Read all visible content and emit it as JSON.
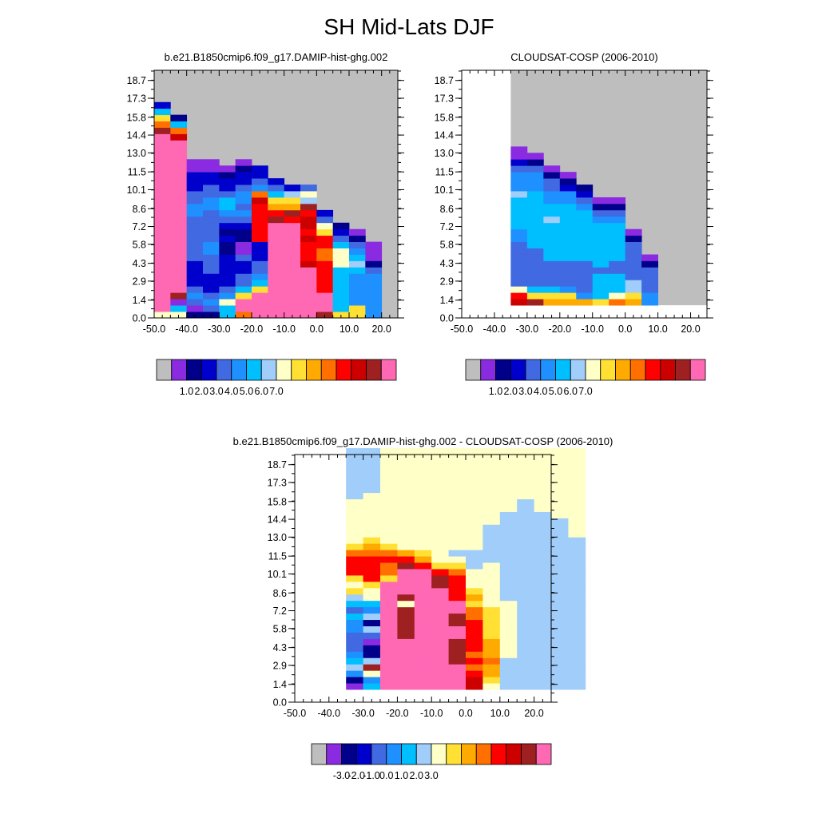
{
  "figure": {
    "title": "SH Mid-Lats DJF"
  },
  "palette": [
    "#bebebe",
    "#8a2be2",
    "#00008b",
    "#0000cd",
    "#4169e1",
    "#1e90ff",
    "#00bfff",
    "#a0cdfa",
    "#ffffc8",
    "#ffe033",
    "#ffaa00",
    "#ff7000",
    "#ff0000",
    "#cd0000",
    "#9e2020",
    "#ff69b4"
  ],
  "chart_data": [
    {
      "type": "heatmap",
      "title": "b.e21.B1850cmip6.f09_g17.DAMIP-hist-ghg.002",
      "xlabel": "",
      "ylabel": "",
      "xlim": [
        -50,
        25
      ],
      "ylim": [
        0,
        19.5
      ],
      "x_ticks": [
        "-50.0",
        "-40.0",
        "-30.0",
        "-20.0",
        "-10.0",
        "0.0",
        "10.0",
        "20.0"
      ],
      "y_ticks": [
        "0.0",
        "1.4",
        "2.9",
        "4.3",
        "5.8",
        "7.2",
        "8.6",
        "10.1",
        "11.5",
        "13.0",
        "14.4",
        "15.8",
        "17.3",
        "18.7"
      ],
      "colorbar_labels": [
        "1.0",
        "2.0",
        "3.0",
        "4.0",
        "5.0",
        "6.0",
        "7.0"
      ],
      "background_color_index": 0,
      "front_top": [
        15,
        15,
        14,
        14,
        14,
        14,
        13.5,
        13,
        12.5,
        12,
        11.2,
        10.2,
        9.2,
        7.5
      ],
      "columns": [
        [
          8,
          15,
          15,
          15,
          15,
          15,
          15,
          15,
          15,
          15,
          15,
          15,
          15,
          15,
          15,
          15,
          15,
          15,
          15,
          15,
          15,
          15,
          15,
          15,
          15,
          15,
          15,
          15,
          15,
          14,
          11,
          9,
          6,
          3
        ],
        [
          8,
          6,
          1,
          14,
          15,
          15,
          15,
          15,
          15,
          15,
          15,
          15,
          15,
          15,
          15,
          15,
          15,
          15,
          15,
          15,
          15,
          15,
          15,
          15,
          15,
          15,
          15,
          15,
          13,
          11,
          6,
          2
        ],
        [
          2,
          1,
          4,
          5,
          4,
          3,
          3,
          3,
          3,
          4,
          4,
          4,
          4,
          4,
          4,
          4,
          5,
          5,
          4,
          4,
          3,
          3,
          3,
          1,
          1
        ],
        [
          2,
          4,
          5,
          4,
          3,
          3,
          3,
          4,
          4,
          4,
          5,
          5,
          4,
          4,
          4,
          4,
          4,
          5,
          5,
          4,
          4,
          3,
          3,
          1,
          1
        ],
        [
          6,
          6,
          8,
          5,
          4,
          3,
          3,
          3,
          3,
          3,
          2,
          2,
          3,
          2,
          3,
          4,
          5,
          6,
          6,
          4,
          3,
          3,
          2,
          1
        ],
        [
          11,
          15,
          15,
          9,
          6,
          4,
          4,
          3,
          3,
          4,
          1,
          1,
          2,
          2,
          3,
          4,
          5,
          4,
          5,
          5,
          4,
          3,
          3,
          2,
          1
        ],
        [
          15,
          15,
          15,
          15,
          9,
          6,
          5,
          4,
          4,
          3,
          3,
          3,
          12,
          12,
          12,
          12,
          12,
          12,
          13,
          11,
          5,
          4,
          3,
          3
        ],
        [
          15,
          15,
          15,
          15,
          15,
          15,
          15,
          15,
          15,
          15,
          15,
          15,
          15,
          15,
          15,
          14,
          12,
          10,
          9,
          6,
          4,
          3
        ],
        [
          15,
          15,
          15,
          15,
          15,
          15,
          15,
          15,
          15,
          15,
          15,
          15,
          15,
          15,
          15,
          12,
          14,
          10,
          9,
          7,
          3
        ],
        [
          15,
          15,
          15,
          15,
          15,
          15,
          15,
          15,
          13,
          12,
          12,
          12,
          13,
          12,
          13,
          13,
          12,
          14,
          7,
          8,
          4
        ],
        [
          14,
          15,
          15,
          15,
          12,
          12,
          12,
          12,
          12,
          11,
          11,
          12,
          12,
          9,
          8,
          4,
          3
        ],
        [
          9,
          6,
          6,
          6,
          6,
          6,
          6,
          6,
          8,
          8,
          8,
          6,
          4,
          3,
          2
        ],
        [
          9,
          9,
          5,
          5,
          5,
          5,
          5,
          6,
          7,
          6,
          5,
          4,
          2,
          1
        ],
        [
          5,
          5,
          5,
          5,
          5,
          5,
          5,
          4,
          2,
          1,
          1,
          1
        ]
      ]
    },
    {
      "type": "heatmap",
      "title": "CLOUDSAT-COSP (2006-2010)",
      "xlabel": "",
      "ylabel": "",
      "xlim": [
        -50,
        25
      ],
      "ylim": [
        0,
        19.5
      ],
      "x_ticks": [
        "-50.0",
        "-40.0",
        "-30.0",
        "-20.0",
        "-10.0",
        "0.0",
        "10.0",
        "20.0"
      ],
      "y_ticks": [
        "0.0",
        "1.4",
        "2.9",
        "4.3",
        "5.8",
        "7.2",
        "8.6",
        "10.1",
        "11.5",
        "13.0",
        "14.4",
        "15.8",
        "17.3",
        "18.7"
      ],
      "colorbar_labels": [
        "1.0",
        "2.0",
        "3.0",
        "4.0",
        "5.0",
        "6.0",
        "7.0"
      ],
      "background_color_index": 0,
      "data_x_start": -35,
      "data_y_start": 1,
      "columns": [
        [
          13,
          12,
          8,
          4,
          4,
          4,
          4,
          4,
          4,
          4,
          5,
          5,
          6,
          6,
          6,
          6,
          6,
          7,
          5,
          5,
          5,
          4,
          3,
          1,
          1
        ],
        [
          14,
          9,
          6,
          4,
          4,
          4,
          4,
          4,
          4,
          6,
          6,
          6,
          6,
          6,
          6,
          6,
          6,
          6,
          5,
          5,
          5,
          4,
          2,
          1
        ],
        [
          10,
          9,
          6,
          4,
          4,
          4,
          4,
          6,
          6,
          6,
          6,
          6,
          6,
          7,
          6,
          6,
          5,
          5,
          4,
          4,
          2,
          1
        ],
        [
          10,
          9,
          5,
          4,
          4,
          4,
          4,
          6,
          6,
          6,
          6,
          6,
          6,
          6,
          6,
          6,
          5,
          5,
          3,
          2,
          1
        ],
        [
          10,
          5,
          4,
          4,
          4,
          4,
          4,
          6,
          6,
          6,
          6,
          6,
          6,
          6,
          6,
          5,
          4,
          3,
          2
        ],
        [
          9,
          6,
          6,
          6,
          6,
          4,
          6,
          6,
          6,
          6,
          6,
          6,
          6,
          5,
          4,
          2,
          1
        ],
        [
          11,
          8,
          6,
          6,
          6,
          4,
          4,
          6,
          6,
          6,
          6,
          6,
          6,
          5,
          4,
          2,
          1
        ],
        [
          10,
          9,
          7,
          7,
          4,
          4,
          4,
          4,
          4,
          4,
          2,
          1
        ],
        [
          5,
          5,
          4,
          4,
          4,
          4,
          2,
          1
        ]
      ]
    },
    {
      "type": "heatmap",
      "title": "b.e21.B1850cmip6.f09_g17.DAMIP-hist-ghg.002 - CLOUDSAT-COSP (2006-2010)",
      "xlabel": "",
      "ylabel": "",
      "xlim": [
        -50,
        25
      ],
      "ylim": [
        0,
        19.5
      ],
      "x_ticks": [
        "-50.0",
        "-40.0",
        "-30.0",
        "-20.0",
        "-10.0",
        "0.0",
        "10.0",
        "20.0"
      ],
      "y_ticks": [
        "0.0",
        "1.4",
        "2.9",
        "4.3",
        "5.8",
        "7.2",
        "8.6",
        "10.1",
        "11.5",
        "13.0",
        "14.4",
        "15.8",
        "17.3",
        "18.7"
      ],
      "colorbar_labels": [
        "-3.0",
        "-2.0",
        "-1.0",
        "0.0",
        "1.0",
        "2.0",
        "3.0"
      ],
      "background_color_index": 8,
      "data_x_start": -35,
      "data_y_start": 1,
      "columns": [
        [
          1,
          2,
          5,
          7,
          6,
          5,
          4,
          4,
          4,
          5,
          5,
          6,
          4,
          6,
          7,
          9,
          8,
          9,
          12,
          12,
          12,
          11,
          9,
          8,
          8,
          8,
          8,
          8,
          8,
          8,
          7,
          7,
          7,
          7,
          7,
          7,
          7,
          7
        ],
        [
          6,
          5,
          8,
          14,
          7,
          2,
          2,
          1,
          4,
          7,
          2,
          7,
          5,
          6,
          8,
          8,
          9,
          12,
          12,
          12,
          12,
          11,
          10,
          9,
          8,
          8,
          8,
          8,
          8,
          8,
          8,
          7,
          7,
          7,
          7,
          7,
          7,
          7
        ],
        [
          15,
          15,
          15,
          15,
          15,
          15,
          15,
          15,
          15,
          15,
          15,
          15,
          15,
          15,
          15,
          15,
          15,
          9,
          11,
          11,
          12,
          11,
          9,
          8,
          8,
          8,
          8,
          8,
          8,
          8,
          8,
          8,
          8,
          8,
          8,
          8,
          8,
          8
        ],
        [
          15,
          15,
          15,
          15,
          15,
          15,
          15,
          15,
          14,
          14,
          14,
          14,
          14,
          8,
          14,
          15,
          15,
          15,
          15,
          14,
          12,
          10,
          8,
          8,
          8,
          8,
          8,
          8,
          8,
          8,
          8,
          8,
          8,
          8,
          8,
          8,
          8,
          8
        ],
        [
          15,
          15,
          15,
          15,
          15,
          15,
          15,
          15,
          15,
          15,
          15,
          15,
          15,
          15,
          15,
          15,
          15,
          15,
          15,
          12,
          10,
          9,
          8,
          8,
          8,
          8,
          8,
          8,
          8,
          8,
          8,
          8,
          8,
          8,
          8,
          8,
          8,
          8
        ],
        [
          15,
          15,
          15,
          15,
          15,
          15,
          15,
          15,
          15,
          15,
          15,
          15,
          15,
          15,
          15,
          15,
          14,
          14,
          12,
          9,
          8,
          8,
          8,
          8,
          8,
          8,
          8,
          8,
          8,
          8,
          8,
          8,
          8,
          8,
          8,
          8,
          8,
          8
        ],
        [
          15,
          15,
          15,
          15,
          14,
          14,
          14,
          14,
          15,
          15,
          14,
          14,
          15,
          15,
          12,
          12,
          12,
          12,
          11,
          9,
          8,
          7,
          8,
          8,
          8,
          8,
          8,
          8,
          8,
          8,
          8,
          8,
          8,
          8,
          8,
          8,
          8,
          8
        ],
        [
          13,
          13,
          12,
          11,
          12,
          11,
          12,
          12,
          12,
          12,
          12,
          11,
          11,
          9,
          10,
          9,
          8,
          8,
          8,
          7,
          7,
          7,
          8,
          8,
          8,
          8,
          8,
          8,
          8,
          8,
          8,
          8,
          8,
          8,
          8,
          8,
          8,
          8
        ],
        [
          8,
          9,
          10,
          10,
          11,
          10,
          10,
          10,
          9,
          9,
          9,
          9,
          9,
          8,
          8,
          8,
          8,
          8,
          8,
          8,
          7,
          7,
          7,
          7,
          7,
          7,
          8,
          8,
          8,
          8,
          8,
          8,
          8,
          8,
          8,
          8,
          8,
          8
        ],
        [
          7,
          7,
          7,
          7,
          7,
          8,
          8,
          8,
          8,
          8,
          8,
          8,
          8,
          8,
          7,
          7,
          7,
          7,
          7,
          7,
          7,
          7,
          7,
          7,
          7,
          7,
          7,
          7,
          8,
          8,
          8,
          8,
          8,
          8,
          8,
          8,
          8,
          8
        ],
        [
          7,
          7,
          7,
          7,
          7,
          7,
          7,
          7,
          7,
          7,
          7,
          7,
          7,
          7,
          7,
          7,
          7,
          7,
          7,
          7,
          7,
          7,
          7,
          7,
          7,
          7,
          7,
          7,
          7,
          7,
          8,
          8,
          8,
          8,
          8,
          8,
          8,
          8
        ],
        [
          7,
          7,
          7,
          7,
          7,
          7,
          7,
          7,
          7,
          7,
          7,
          7,
          7,
          7,
          7,
          7,
          7,
          7,
          7,
          7,
          7,
          7,
          7,
          7,
          7,
          7,
          7,
          7,
          8,
          8,
          8,
          8,
          8,
          8,
          8,
          8,
          8,
          8
        ],
        [
          7,
          7,
          7,
          7,
          7,
          7,
          7,
          7,
          7,
          7,
          7,
          7,
          7,
          7,
          7,
          7,
          7,
          7,
          7,
          7,
          7,
          7,
          7,
          7,
          7,
          7,
          7,
          8,
          8,
          8,
          8,
          8,
          8,
          8,
          8,
          8,
          8,
          8
        ],
        [
          7,
          7,
          7,
          7,
          7,
          7,
          7,
          7,
          7,
          7,
          7,
          7,
          7,
          7,
          7,
          7,
          7,
          7,
          7,
          7,
          7,
          7,
          7,
          7,
          8,
          8,
          8,
          8,
          8,
          8,
          8,
          8,
          8,
          8,
          8,
          8,
          8,
          8
        ]
      ]
    }
  ]
}
